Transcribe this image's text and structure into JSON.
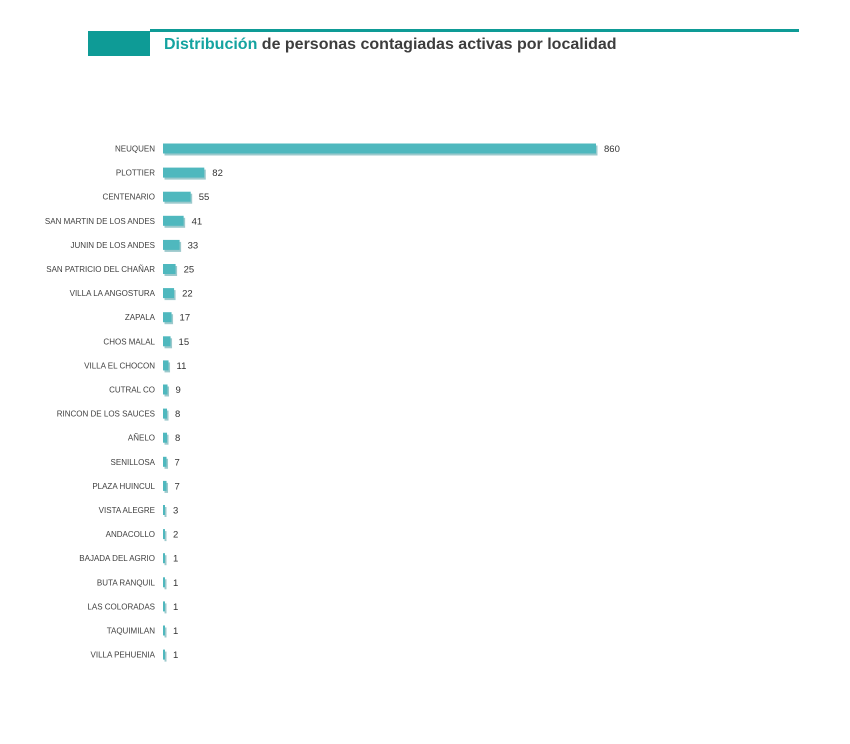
{
  "title": {
    "accent": "Distribución",
    "rest": " de personas contagiadas activas por localidad"
  },
  "colors": {
    "header": "#0e9b96",
    "bar": "#4fb8be",
    "bar_shadow": "#9cc9cc"
  },
  "chart_data": {
    "type": "bar",
    "orientation": "horizontal",
    "title": "Distribución de personas contagiadas activas por localidad",
    "xlabel": "",
    "ylabel": "",
    "grid": false,
    "legend": false,
    "xlim": [
      0,
      860
    ],
    "categories": [
      "NEUQUEN",
      "PLOTTIER",
      "CENTENARIO",
      "SAN MARTIN DE LOS ANDES",
      "JUNIN DE LOS ANDES",
      "SAN PATRICIO DEL CHAÑAR",
      "VILLA LA ANGOSTURA",
      "ZAPALA",
      "CHOS MALAL",
      "VILLA EL CHOCON",
      "CUTRAL CO",
      "RINCON DE LOS SAUCES",
      "AÑELO",
      "SENILLOSA",
      "PLAZA HUINCUL",
      "VISTA ALEGRE",
      "ANDACOLLO",
      "BAJADA DEL AGRIO",
      "BUTA RANQUIL",
      "LAS COLORADAS",
      "TAQUIMILAN",
      "VILLA PEHUENIA"
    ],
    "values": [
      860,
      82,
      55,
      41,
      33,
      25,
      22,
      17,
      15,
      11,
      9,
      8,
      8,
      7,
      7,
      3,
      2,
      1,
      1,
      1,
      1,
      1
    ]
  }
}
